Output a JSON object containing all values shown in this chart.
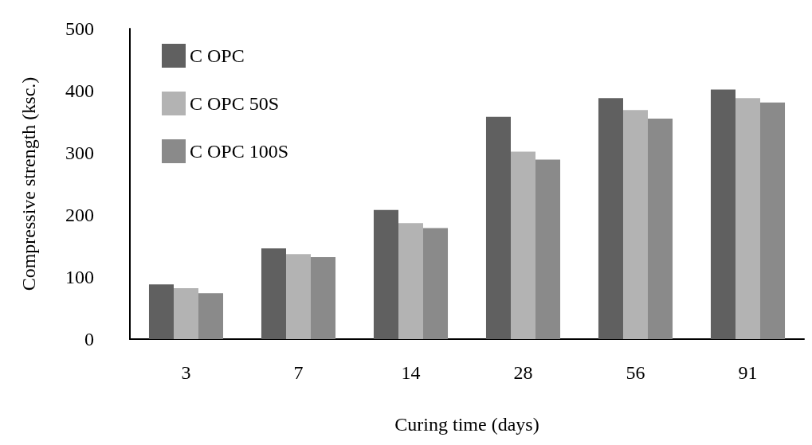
{
  "chart_data": {
    "type": "bar",
    "xlabel": "Curing time (days)",
    "ylabel": "Compressive strength (ksc.)",
    "categories": [
      "3",
      "7",
      "14",
      "28",
      "56",
      "91"
    ],
    "series": [
      {
        "name": "C OPC",
        "color": "#606060",
        "values": [
          88,
          146,
          208,
          358,
          388,
          402
        ]
      },
      {
        "name": "C OPC 50S",
        "color": "#b3b3b3",
        "values": [
          82,
          137,
          187,
          302,
          369,
          388
        ]
      },
      {
        "name": "C OPC 100S",
        "color": "#8a8a8a",
        "values": [
          74,
          132,
          179,
          289,
          355,
          381
        ]
      }
    ],
    "ylim": [
      0,
      500
    ],
    "yticks": [
      0,
      100,
      200,
      300,
      400,
      500
    ],
    "grid": false,
    "legend": "top left"
  }
}
